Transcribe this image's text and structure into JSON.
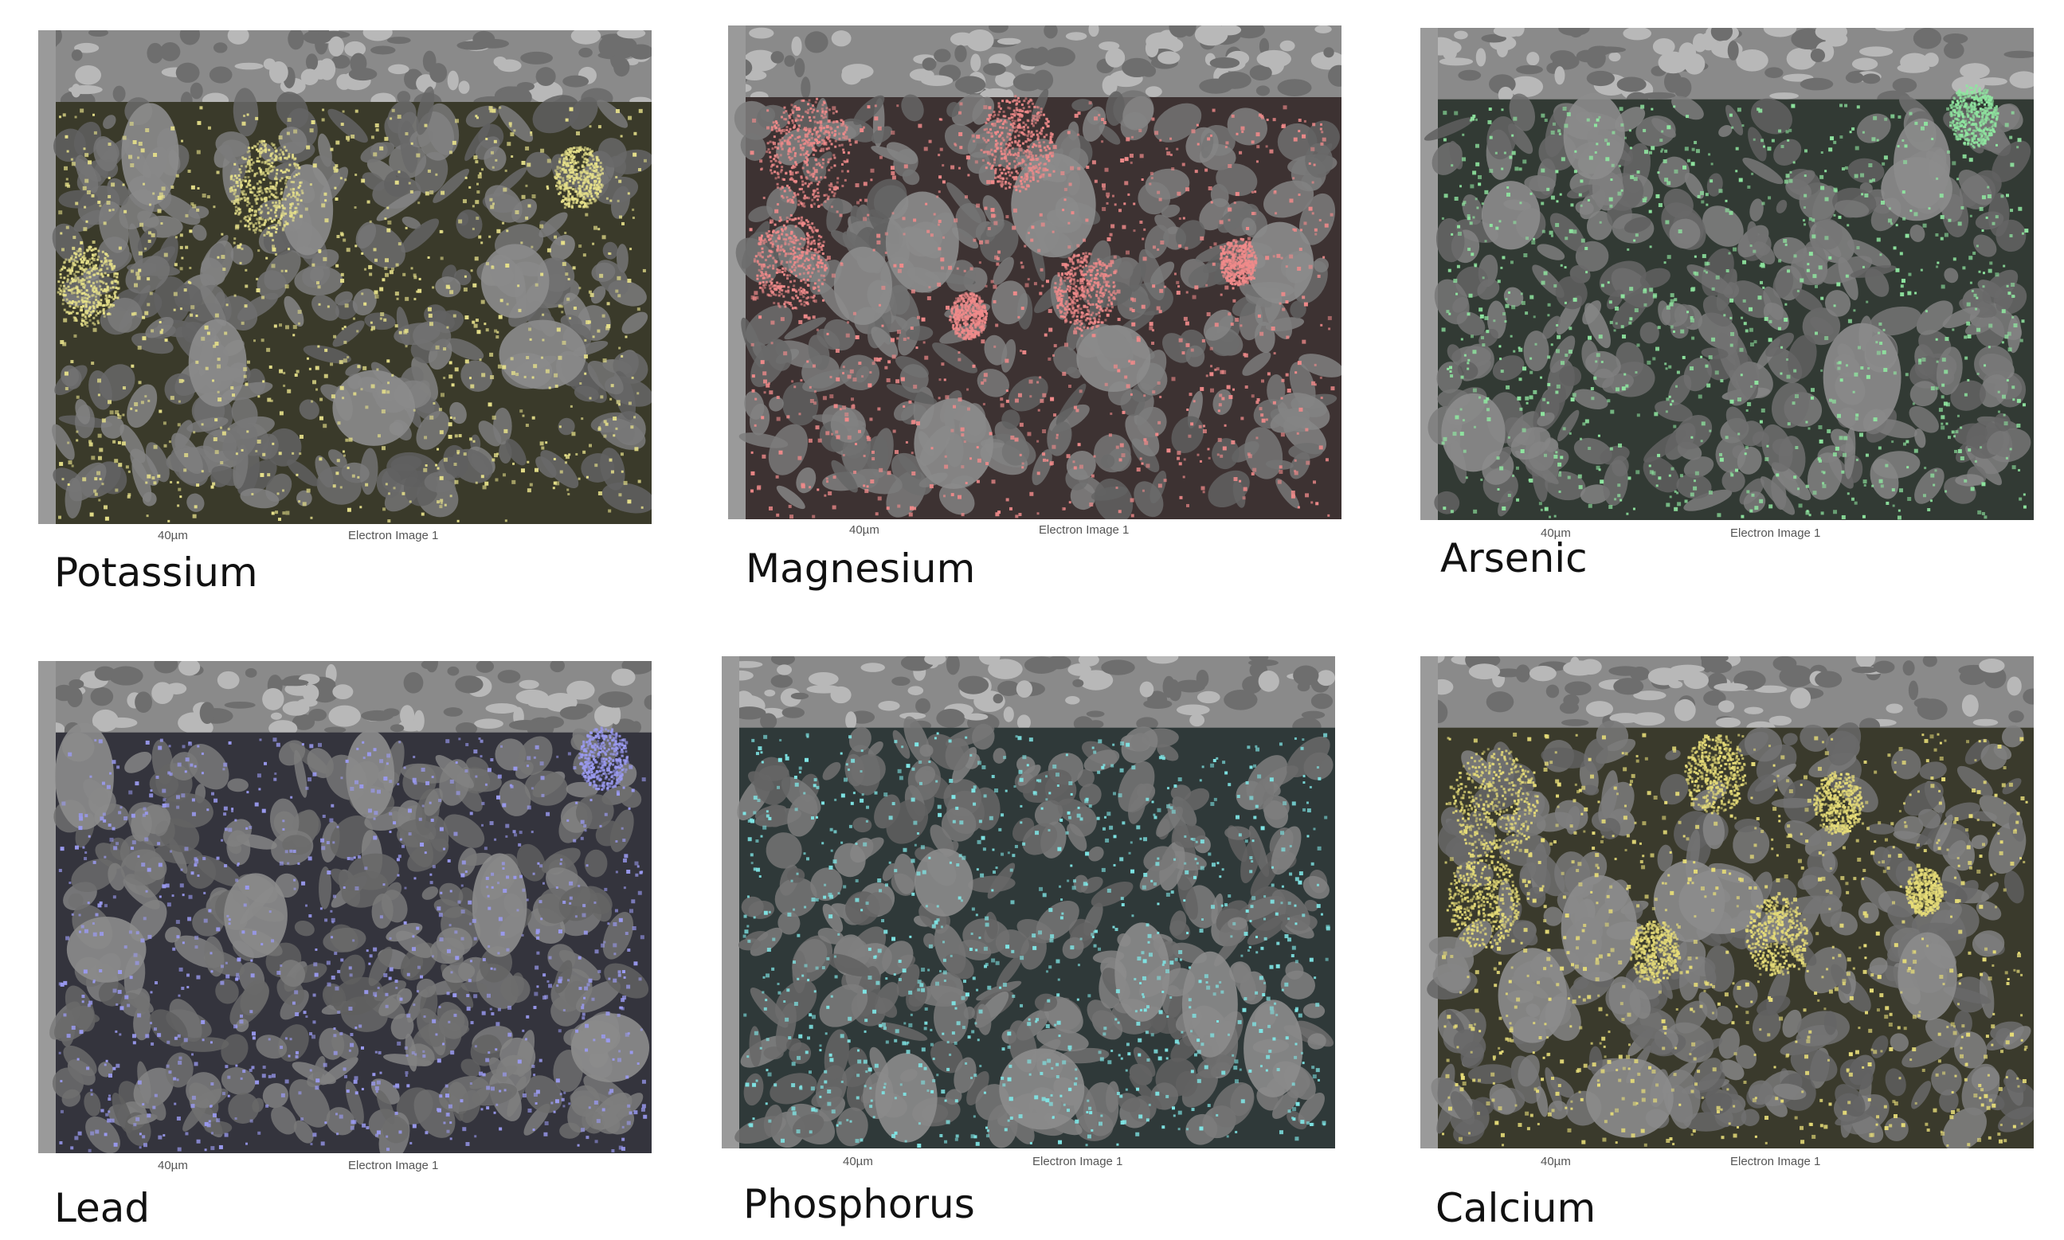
{
  "panels": [
    {
      "element": "Potassium",
      "scale": "40µm",
      "caption": "Electron Image 1",
      "dot_color": "#e6e08a",
      "tint": "#3a3a2a"
    },
    {
      "element": "Magnesium",
      "scale": "40µm",
      "caption": "Electron Image 1",
      "dot_color": "#f08a8a",
      "tint": "#3d3232"
    },
    {
      "element": "Arsenic",
      "scale": "40µm",
      "caption": "Electron Image 1",
      "dot_color": "#8fe6a0",
      "tint": "#323a34"
    },
    {
      "element": "Lead",
      "scale": "40µm",
      "caption": "Electron Image 1",
      "dot_color": "#9a9af0",
      "tint": "#34343d"
    },
    {
      "element": "Phosphorus",
      "scale": "40µm",
      "caption": "Electron Image 1",
      "dot_color": "#7fe6e6",
      "tint": "#2f3939"
    },
    {
      "element": "Calcium",
      "scale": "40µm",
      "caption": "Electron Image 1",
      "dot_color": "#e6dc78",
      "tint": "#3a3a2c"
    }
  ]
}
